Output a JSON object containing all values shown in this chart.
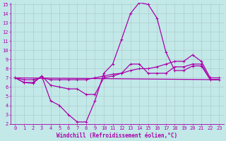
{
  "xlabel": "Windchill (Refroidissement éolien,°C)",
  "bg_color": "#c2e8e8",
  "line_color": "#aa00aa",
  "grid_color": "#b0cccc",
  "ylim": [
    2,
    15
  ],
  "xlim": [
    -0.5,
    23.5
  ],
  "yticks": [
    2,
    3,
    4,
    5,
    6,
    7,
    8,
    9,
    10,
    11,
    12,
    13,
    14,
    15
  ],
  "xticks": [
    0,
    1,
    2,
    3,
    4,
    5,
    6,
    7,
    8,
    9,
    10,
    11,
    12,
    13,
    14,
    15,
    16,
    17,
    18,
    19,
    20,
    21,
    22,
    23
  ],
  "line1_x": [
    0,
    1,
    2,
    3,
    4,
    5,
    6,
    7,
    8,
    9,
    10,
    11,
    12,
    13,
    14,
    15,
    16,
    17,
    18,
    19,
    20,
    21,
    22,
    23
  ],
  "line1_y": [
    7.0,
    6.5,
    6.5,
    7.2,
    4.5,
    4.0,
    3.0,
    2.2,
    2.2,
    4.5,
    7.5,
    8.5,
    11.2,
    14.0,
    15.2,
    15.0,
    13.5,
    9.8,
    7.8,
    7.8,
    8.3,
    8.3,
    6.8,
    6.8
  ],
  "line2_x": [
    0,
    1,
    2,
    3,
    4,
    5,
    6,
    7,
    8,
    9,
    10,
    11,
    12,
    13,
    14,
    15,
    16,
    17,
    18,
    19,
    20,
    21,
    22,
    23
  ],
  "line2_y": [
    7.0,
    6.5,
    6.4,
    7.2,
    6.2,
    6.0,
    5.8,
    5.8,
    5.2,
    5.2,
    7.0,
    7.2,
    7.5,
    8.5,
    8.5,
    7.5,
    7.5,
    7.5,
    8.2,
    8.2,
    8.5,
    8.5,
    6.8,
    6.8
  ],
  "line3_x": [
    0,
    1,
    2,
    3,
    4,
    5,
    6,
    7,
    8,
    9,
    10,
    11,
    12,
    13,
    14,
    15,
    16,
    17,
    18,
    19,
    20,
    21,
    22,
    23
  ],
  "line3_y": [
    7.0,
    6.8,
    6.8,
    7.0,
    6.8,
    6.8,
    6.8,
    6.8,
    6.8,
    7.0,
    7.2,
    7.4,
    7.5,
    7.8,
    8.0,
    8.0,
    8.2,
    8.5,
    8.8,
    8.8,
    9.5,
    8.8,
    7.0,
    7.0
  ],
  "line4_x": [
    0,
    23
  ],
  "line4_y": [
    7.0,
    6.8
  ],
  "marker_size": 2.5,
  "linewidth": 0.9,
  "tick_fontsize": 5.0,
  "xlabel_fontsize": 5.5
}
